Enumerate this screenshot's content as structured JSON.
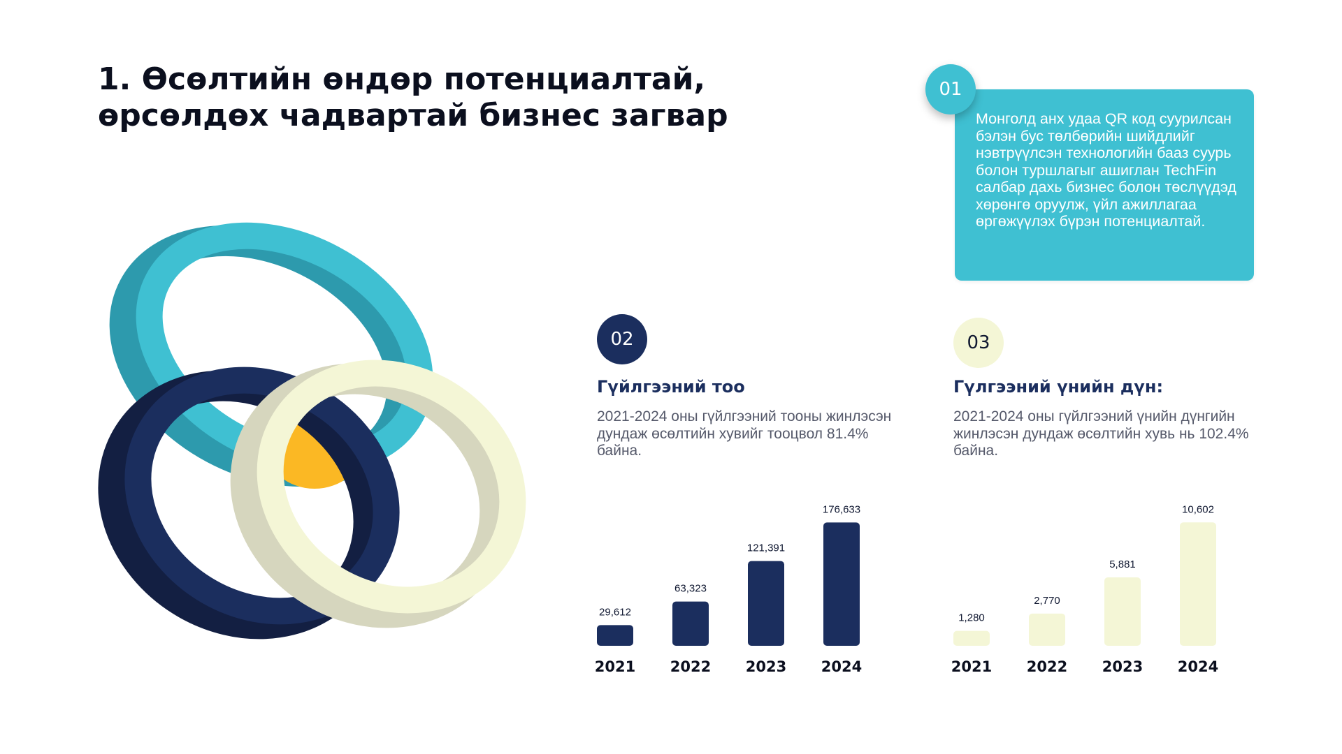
{
  "header": {
    "title_line1": "1. Өсөлтийн өндөр потенциалтай,",
    "title_line2": "өрсөлдөх чадвартай бизнес загвар"
  },
  "card01": {
    "badge": "01",
    "text": "Монголд анх удаа QR код суурилсан бэлэн бус төлбөрийн шийдлийг нэвтрүүлсэн технологийн бааз суурь болон туршлагыг ашиглан TechFin  салбар дахь бизнес болон төслүүдэд хөрөнгө оруулж, үйл ажиллагаа өргөжүүлэх бүрэн потенциалтай."
  },
  "section02": {
    "badge": "02",
    "title": "Гүйлгээний тоо",
    "description": "2021-2024 оны гүйлгээний тооны жинлэсэн дундаж өсөлтийн хувийг тооцвол  81.4% байна."
  },
  "section03": {
    "badge": "03",
    "title": "Гүлгээний үнийн дүн:",
    "description": "2021-2024 оны гүйлгээний үнийн дүнгийн жинлэсэн дундаж өсөлтийн хувь нь 102.4% байна."
  },
  "colors": {
    "teal": "#3fc0d2",
    "navy": "#1b2e5e",
    "cream": "#f4f6d6",
    "yellow": "#fbb824"
  },
  "chart_data": [
    {
      "type": "bar",
      "categories": [
        "2021",
        "2022",
        "2023",
        "2024"
      ],
      "values": [
        29612,
        63323,
        121391,
        176633
      ],
      "data_labels": [
        "29,612",
        "63,323",
        "121,391",
        "176,633"
      ],
      "color": "#1b2e5e",
      "ylim": [
        0,
        190000
      ],
      "grid": false
    },
    {
      "type": "bar",
      "categories": [
        "2021",
        "2022",
        "2023",
        "2024"
      ],
      "values": [
        1280,
        2770,
        5881,
        10602
      ],
      "data_labels": [
        "1,280",
        "2,770",
        "5,881",
        "10,602"
      ],
      "color": "#f4f6d6",
      "ylim": [
        0,
        11400
      ],
      "grid": false
    }
  ]
}
